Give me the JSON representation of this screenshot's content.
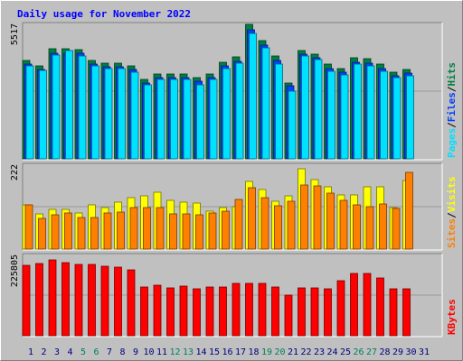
{
  "title": "Daily usage for November 2022",
  "colors": {
    "background": "#c0c0c0",
    "title": "#0000ff",
    "hits": "#008040",
    "files": "#0040ff",
    "pages": "#00e0ff",
    "visits": "#ffff00",
    "sites": "#ff8000",
    "kbytes": "#ff0000",
    "weekend_label": "#00805c",
    "weekday_label": "#000080"
  },
  "days": [
    "1",
    "2",
    "3",
    "4",
    "5",
    "6",
    "7",
    "8",
    "9",
    "10",
    "11",
    "12",
    "13",
    "14",
    "15",
    "16",
    "17",
    "18",
    "19",
    "20",
    "21",
    "22",
    "23",
    "24",
    "25",
    "26",
    "27",
    "28",
    "29",
    "30",
    "31"
  ],
  "weekend_days": [
    5,
    6,
    12,
    13,
    19,
    20,
    26,
    27
  ],
  "chart_data": [
    {
      "type": "bar",
      "panel": "top",
      "y_max_label": "5517",
      "ylim": [
        0,
        5517
      ],
      "legend": [
        "Pages",
        "Files",
        "Hits"
      ],
      "series": [
        {
          "name": "Hits",
          "values": [
            4040,
            3800,
            4520,
            4500,
            4490,
            4050,
            3930,
            3920,
            3800,
            3250,
            3480,
            3480,
            3480,
            3320,
            3480,
            3970,
            4180,
            5517,
            4840,
            4220,
            3110,
            4460,
            4300,
            3880,
            3700,
            4150,
            4100,
            3870,
            3550,
            3680,
            0
          ]
        },
        {
          "name": "Files",
          "values": [
            3880,
            3650,
            4330,
            4320,
            4320,
            3900,
            3780,
            3770,
            3650,
            3120,
            3340,
            3340,
            3340,
            3190,
            3340,
            3810,
            4010,
            5300,
            4650,
            4050,
            2990,
            4280,
            4130,
            3720,
            3550,
            3980,
            3940,
            3720,
            3410,
            3530,
            0
          ]
        },
        {
          "name": "Pages",
          "values": [
            3830,
            3640,
            4260,
            4440,
            4230,
            3830,
            3700,
            3710,
            3560,
            3030,
            3240,
            3250,
            3250,
            3020,
            3240,
            3700,
            3920,
            5160,
            4570,
            3890,
            2780,
            4210,
            4070,
            3600,
            3450,
            3880,
            3830,
            3610,
            3320,
            3420,
            0
          ]
        }
      ]
    },
    {
      "type": "bar",
      "panel": "middle",
      "y_max_label": "222",
      "ylim": [
        0,
        222
      ],
      "legend": [
        "Sites",
        "Visits"
      ],
      "series": [
        {
          "name": "Visits",
          "values": [
            116,
            94,
            104,
            104,
            96,
            116,
            110,
            124,
            136,
            140,
            150,
            128,
            124,
            122,
            100,
            110,
            112,
            178,
            158,
            126,
            140,
            212,
            184,
            164,
            144,
            144,
            164,
            164,
            110,
            182,
            0
          ]
        },
        {
          "name": "Sites",
          "values": [
            116,
            82,
            90,
            96,
            84,
            84,
            96,
            98,
            110,
            110,
            110,
            92,
            94,
            90,
            96,
            100,
            132,
            162,
            136,
            114,
            126,
            170,
            166,
            148,
            130,
            118,
            112,
            120,
            108,
            202,
            0
          ]
        }
      ]
    },
    {
      "type": "bar",
      "panel": "bottom",
      "y_max_label": "225805",
      "ylim": [
        0,
        225805
      ],
      "legend": [
        "KBytes"
      ],
      "series": [
        {
          "name": "KBytes",
          "values": [
            197000,
            204000,
            212000,
            206000,
            200000,
            200000,
            196000,
            192000,
            184000,
            138000,
            142000,
            134000,
            139000,
            131000,
            136000,
            136000,
            146000,
            148000,
            147000,
            138000,
            114000,
            134000,
            134000,
            132000,
            154000,
            176000,
            176000,
            162000,
            132000,
            132000,
            0
          ]
        }
      ]
    }
  ]
}
